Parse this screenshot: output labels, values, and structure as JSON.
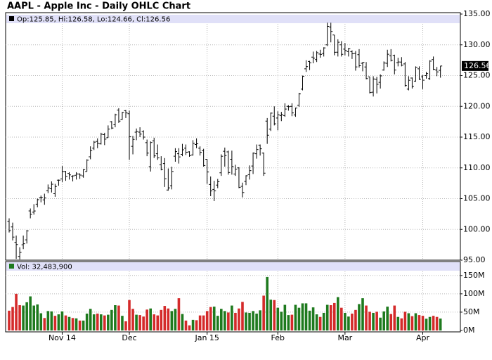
{
  "chart_data": {
    "type": "ohlc",
    "title": "AAPL - Apple Inc - Daily OHLC Chart",
    "ohlc_label": "Op:125.85, Hi:126.58, Lo:124.66, Cl:126.56",
    "volume_label": "Vol: 32,483,900",
    "categories": [
      null,
      null,
      null,
      null,
      null,
      null,
      null,
      null,
      null,
      null,
      null,
      null,
      null,
      null,
      null,
      "Nov 14",
      null,
      null,
      null,
      null,
      null,
      null,
      null,
      null,
      null,
      null,
      null,
      null,
      null,
      null,
      null,
      null,
      null,
      null,
      "Dec",
      null,
      null,
      null,
      null,
      null,
      null,
      null,
      null,
      null,
      null,
      null,
      null,
      null,
      null,
      null,
      null,
      null,
      null,
      null,
      null,
      null,
      "Jan 15",
      null,
      null,
      null,
      null,
      null,
      null,
      null,
      null,
      null,
      null,
      null,
      null,
      null,
      null,
      null,
      null,
      null,
      null,
      null,
      "Feb",
      null,
      null,
      null,
      null,
      null,
      null,
      null,
      null,
      null,
      null,
      null,
      null,
      null,
      null,
      null,
      null,
      null,
      null,
      "Mar",
      null,
      null,
      null,
      null,
      null,
      null,
      null,
      null,
      null,
      null,
      null,
      null,
      null,
      null,
      null,
      null,
      null,
      null,
      null,
      null,
      null,
      "Apr",
      null,
      null,
      null,
      null,
      null
    ],
    "open": [
      101.3,
      100.4,
      97.9,
      95.6,
      97.5,
      98.3,
      103.0,
      102.8,
      104.1,
      105.2,
      104.8,
      106.3,
      106.6,
      105.8,
      108.0,
      108.2,
      109.4,
      109.1,
      108.6,
      108.8,
      109.0,
      108.7,
      109.4,
      111.8,
      113.2,
      114.3,
      113.9,
      115.4,
      114.9,
      117.5,
      117.0,
      119.4,
      117.9,
      119.3,
      118.8,
      113.5,
      115.8,
      115.8,
      115.9,
      114.1,
      110.2,
      114.4,
      112.3,
      110.5,
      110.7,
      106.4,
      107.1,
      111.9,
      112.3,
      112.2,
      113.2,
      112.6,
      112.1,
      113.8,
      113.2,
      112.8,
      111.4,
      107.3,
      106.5,
      107.2,
      109.2,
      112.7,
      112.6,
      111.4,
      109.0,
      110.0,
      107.0,
      107.8,
      108.9,
      110.3,
      112.3,
      113.7,
      112.4,
      117.6,
      116.3,
      118.4,
      118.1,
      118.5,
      118.5,
      120.0,
      120.0,
      118.6,
      120.2,
      122.8,
      126.1,
      127.3,
      128.0,
      127.6,
      128.5,
      128.6,
      130.0,
      132.9,
      131.6,
      128.8,
      130.0,
      129.3,
      128.9,
      128.9,
      128.6,
      128.4,
      127.0,
      126.4,
      124.8,
      122.3,
      124.4,
      123.9,
      125.9,
      127.0,
      128.2,
      128.3,
      127.1,
      127.2,
      126.9,
      122.8,
      124.6,
      124.1,
      126.1,
      124.8,
      125.0,
      124.5,
      127.6,
      125.9,
      125.85
    ],
    "high": [
      101.8,
      101.1,
      99.0,
      97.1,
      99.0,
      99.9,
      103.4,
      104.1,
      105.0,
      105.5,
      105.8,
      107.3,
      107.8,
      107.4,
      108.1,
      110.3,
      109.5,
      109.3,
      108.8,
      109.3,
      109.1,
      109.8,
      111.4,
      113.5,
      114.4,
      114.8,
      115.7,
      115.7,
      116.9,
      117.6,
      118.8,
      119.7,
      119.1,
      119.4,
      119.3,
      115.2,
      116.4,
      116.6,
      116.1,
      114.6,
      114.3,
      114.9,
      113.8,
      111.9,
      111.6,
      109.9,
      110.2,
      113.2,
      113.2,
      113.9,
      113.8,
      112.7,
      114.5,
      114.8,
      113.5,
      113.1,
      111.4,
      108.6,
      107.9,
      108.2,
      112.2,
      113.3,
      112.8,
      112.8,
      110.5,
      110.1,
      107.6,
      108.8,
      110.4,
      112.5,
      113.8,
      113.8,
      112.5,
      118.1,
      119.0,
      120.0,
      119.2,
      119.1,
      120.5,
      120.2,
      120.5,
      119.8,
      122.2,
      125.0,
      127.5,
      127.4,
      128.9,
      129.0,
      129.2,
      129.6,
      133.6,
      133.6,
      131.6,
      130.9,
      130.6,
      130.3,
      129.5,
      129.1,
      129.0,
      129.3,
      127.2,
      127.2,
      124.8,
      124.9,
      124.8,
      125.2,
      127.3,
      129.2,
      129.3,
      128.4,
      127.9,
      128.0,
      127.2,
      124.9,
      124.7,
      126.5,
      126.5,
      125.1,
      125.6,
      127.5,
      128.1,
      126.4,
      126.58
    ],
    "low": [
      99.5,
      98.2,
      95.2,
      95.1,
      96.8,
      97.7,
      101.8,
      102.4,
      103.6,
      104.4,
      104.0,
      105.9,
      106.0,
      105.3,
      107.1,
      107.7,
      107.9,
      108.1,
      107.8,
      108.1,
      108.2,
      108.4,
      109.4,
      111.4,
      112.9,
      113.2,
      113.8,
      113.7,
      114.9,
      116.3,
      116.6,
      117.3,
      117.8,
      118.1,
      111.3,
      112.2,
      114.5,
      115.0,
      114.6,
      111.9,
      109.4,
      111.6,
      111.3,
      109.6,
      106.9,
      106.3,
      106.5,
      111.0,
      110.7,
      111.9,
      112.1,
      111.8,
      112.0,
      113.2,
      112.0,
      110.2,
      107.4,
      105.4,
      104.6,
      106.7,
      108.7,
      110.2,
      108.9,
      108.9,
      108.7,
      106.7,
      105.2,
      107.2,
      108.1,
      109.0,
      111.5,
      112.0,
      108.7,
      113.9,
      116.0,
      116.9,
      116.1,
      117.6,
      118.3,
      119.3,
      118.4,
      118.3,
      119.9,
      122.6,
      125.6,
      125.9,
      127.0,
      127.2,
      127.9,
      128.1,
      129.8,
      130.4,
      128.3,
      128.1,
      128.1,
      128.3,
      128.1,
      127.7,
      125.8,
      126.3,
      125.7,
      124.4,
      122.1,
      121.6,
      122.1,
      122.9,
      125.8,
      126.4,
      127.3,
      125.2,
      126.5,
      126.5,
      123.2,
      122.6,
      122.9,
      124.0,
      124.3,
      122.8,
      124.5,
      124.3,
      125.9,
      124.9,
      124.66
    ],
    "close": [
      99.8,
      98.75,
      97.54,
      96.26,
      97.67,
      99.76,
      102.47,
      102.99,
      104.83,
      105.22,
      105.11,
      106.74,
      107.34,
      106.98,
      108.0,
      109.4,
      108.6,
      108.86,
      108.7,
      109.01,
      108.83,
      109.7,
      111.25,
      112.82,
      114.18,
      113.99,
      115.47,
      114.67,
      116.31,
      116.47,
      118.63,
      117.6,
      119.0,
      118.93,
      115.07,
      114.63,
      115.93,
      115.49,
      115.0,
      112.4,
      114.12,
      111.95,
      111.62,
      109.73,
      108.23,
      106.75,
      109.41,
      112.65,
      111.78,
      112.94,
      112.54,
      112.01,
      113.99,
      113.91,
      112.52,
      110.38,
      109.33,
      106.25,
      106.26,
      107.75,
      111.89,
      112.01,
      109.25,
      110.22,
      109.8,
      106.82,
      105.99,
      108.72,
      109.55,
      112.4,
      112.98,
      113.1,
      109.14,
      115.31,
      118.9,
      117.16,
      118.63,
      118.65,
      119.56,
      119.94,
      118.93,
      119.72,
      122.02,
      124.88,
      126.46,
      127.08,
      127.83,
      128.72,
      128.45,
      129.5,
      133.0,
      132.17,
      128.79,
      130.42,
      128.46,
      129.09,
      129.36,
      128.54,
      126.41,
      126.6,
      127.14,
      124.51,
      122.24,
      124.45,
      123.59,
      124.95,
      127.04,
      128.47,
      127.5,
      125.9,
      127.21,
      126.69,
      123.38,
      124.24,
      123.25,
      126.37,
      124.43,
      124.25,
      125.32,
      127.35,
      126.01,
      125.6,
      126.56
    ],
    "volume": [
      54000000,
      64000000,
      100000000,
      69000000,
      68000000,
      77000000,
      93000000,
      68000000,
      71000000,
      47000000,
      34000000,
      53000000,
      52000000,
      40000000,
      44000000,
      52000000,
      41000000,
      37000000,
      34000000,
      33000000,
      27000000,
      27000000,
      46000000,
      59000000,
      44000000,
      46000000,
      44000000,
      41000000,
      43000000,
      56000000,
      69000000,
      68000000,
      40000000,
      25000000,
      83000000,
      59000000,
      43000000,
      42000000,
      38000000,
      57000000,
      60000000,
      44000000,
      41000000,
      56000000,
      67000000,
      60000000,
      53000000,
      59000000,
      88000000,
      45000000,
      27000000,
      14000000,
      29000000,
      28000000,
      41000000,
      41000000,
      53000000,
      64000000,
      65000000,
      40000000,
      59000000,
      53000000,
      49000000,
      68000000,
      48000000,
      60000000,
      78000000,
      49000000,
      48000000,
      53000000,
      46000000,
      55000000,
      95000000,
      146000000,
      84000000,
      83000000,
      62000000,
      51000000,
      70000000,
      42000000,
      43000000,
      70000000,
      62000000,
      74000000,
      74000000,
      54000000,
      63000000,
      44000000,
      37000000,
      48000000,
      70000000,
      69000000,
      75000000,
      91000000,
      62000000,
      48000000,
      38000000,
      46000000,
      56000000,
      72000000,
      88000000,
      68000000,
      51000000,
      48000000,
      51000000,
      35000000,
      52000000,
      65000000,
      45000000,
      68000000,
      37000000,
      33000000,
      51000000,
      47000000,
      39000000,
      47000000,
      42000000,
      40000000,
      32000000,
      37000000,
      40000000,
      37000000,
      32483900
    ],
    "ylim": [
      95,
      135
    ],
    "yticks": [
      {
        "value": 95,
        "label": "95.00"
      },
      {
        "value": 100,
        "label": "100.00"
      },
      {
        "value": 105,
        "label": "105.00"
      },
      {
        "value": 110,
        "label": "110.00"
      },
      {
        "value": 115,
        "label": "115.00"
      },
      {
        "value": 120,
        "label": "120.00"
      },
      {
        "value": 125,
        "label": "125.00"
      },
      {
        "value": 130,
        "label": "130.00"
      },
      {
        "value": 135,
        "label": "135.00"
      }
    ],
    "volume_lim": [
      0,
      188000000
    ],
    "volume_ticks": [
      {
        "value": 0,
        "label": "0M"
      },
      {
        "value": 50000000,
        "label": "50M"
      },
      {
        "value": 100000000,
        "label": "100M"
      },
      {
        "value": 150000000,
        "label": "150M"
      }
    ],
    "bar_color": "#000000",
    "up_color": "#1e7a1e",
    "down_color": "#d42a2a",
    "grid": true
  }
}
